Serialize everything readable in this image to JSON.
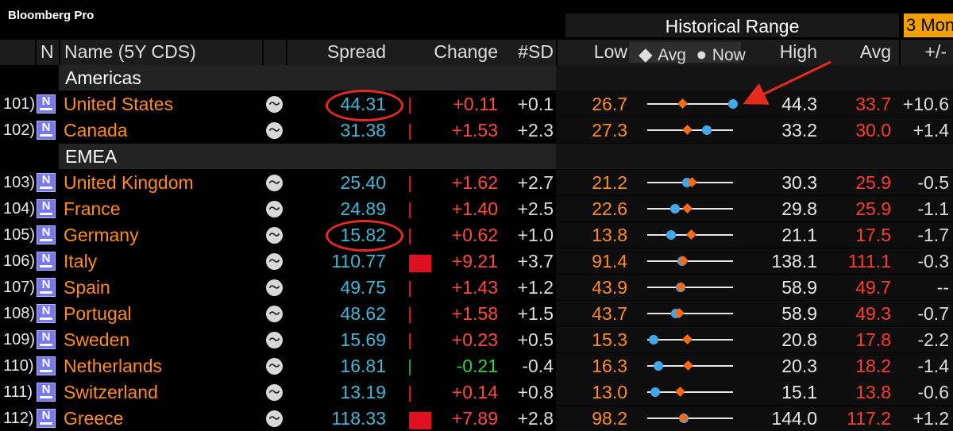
{
  "app": {
    "brand": "Bloomberg Pro"
  },
  "range": {
    "title": "Historical Range",
    "period_button": "3 Mon"
  },
  "columns": {
    "n": "N",
    "name": "Name (5Y CDS)",
    "spread": "Spread",
    "change": "Change",
    "sd": "#SD",
    "low": "Low",
    "legend_avg": "Avg",
    "legend_now": "Now",
    "high": "High",
    "avg": "Avg",
    "pm": "+/-"
  },
  "colors": {
    "accent_orange": "#ff8c1a",
    "spread_cyan": "#3fb7d6",
    "now_blue": "#41a8ec",
    "avg_orange": "#ff6a10",
    "change_red": "#e01020",
    "change_green": "#1fa02a"
  },
  "groups": [
    {
      "label": "Americas",
      "rows": [
        {
          "num": "101)",
          "name": "United States",
          "spread": "44.31",
          "change": "+0.11",
          "change_value": 0.11,
          "sd": "+0.1",
          "low": "26.7",
          "high": "44.3",
          "avg": "33.7",
          "pm": "+10.6",
          "avg_pos": 0.41,
          "now_pos": 1.0,
          "badge": "",
          "highlighted": true
        },
        {
          "num": "102)",
          "name": "Canada",
          "spread": "31.38",
          "change": "+1.53",
          "change_value": 1.53,
          "sd": "+2.3",
          "low": "27.3",
          "high": "33.2",
          "avg": "30.0",
          "pm": "+1.4",
          "avg_pos": 0.46,
          "now_pos": 0.69
        }
      ]
    },
    {
      "label": "EMEA",
      "rows": [
        {
          "num": "103)",
          "name": "United Kingdom",
          "spread": "25.40",
          "change": "+1.62",
          "change_value": 1.62,
          "sd": "+2.7",
          "low": "21.2",
          "high": "30.3",
          "avg": "25.9",
          "pm": "-0.5",
          "avg_pos": 0.52,
          "now_pos": 0.46
        },
        {
          "num": "104)",
          "name": "France",
          "spread": "24.89",
          "change": "+1.40",
          "change_value": 1.4,
          "sd": "+2.5",
          "low": "22.6",
          "high": "29.8",
          "avg": "25.9",
          "pm": "-1.1",
          "avg_pos": 0.46,
          "now_pos": 0.32
        },
        {
          "num": "105)",
          "name": "Germany",
          "spread": "15.82",
          "change": "+0.62",
          "change_value": 0.62,
          "sd": "+1.0",
          "low": "13.8",
          "high": "21.1",
          "avg": "17.5",
          "pm": "-1.7",
          "avg_pos": 0.51,
          "now_pos": 0.28,
          "highlighted": true
        },
        {
          "num": "106)",
          "name": "Italy",
          "spread": "110.77",
          "change": "+9.21",
          "change_value": 9.21,
          "sd": "+3.7",
          "low": "91.4",
          "high": "138.1",
          "avg": "111.1",
          "pm": "-0.3",
          "avg_pos": 0.42,
          "now_pos": 0.41
        },
        {
          "num": "107)",
          "name": "Spain",
          "spread": "49.75",
          "change": "+1.43",
          "change_value": 1.43,
          "sd": "+1.2",
          "low": "43.9",
          "high": "58.9",
          "avg": "49.7",
          "pm": "--",
          "avg_pos": 0.39,
          "now_pos": 0.39
        },
        {
          "num": "108)",
          "name": "Portugal",
          "spread": "48.62",
          "change": "+1.58",
          "change_value": 1.58,
          "sd": "+1.5",
          "low": "43.7",
          "high": "58.9",
          "avg": "49.3",
          "pm": "-0.7",
          "avg_pos": 0.37,
          "now_pos": 0.33
        },
        {
          "num": "109)",
          "name": "Sweden",
          "spread": "15.69",
          "change": "+0.23",
          "change_value": 0.23,
          "sd": "+0.5",
          "low": "15.3",
          "high": "20.8",
          "avg": "17.8",
          "pm": "-2.2",
          "avg_pos": 0.46,
          "now_pos": 0.07
        },
        {
          "num": "110)",
          "name": "Netherlands",
          "spread": "16.81",
          "change": "-0.21",
          "change_value": -0.21,
          "sd": "-0.4",
          "low": "16.3",
          "high": "20.3",
          "avg": "18.2",
          "pm": "-1.4",
          "avg_pos": 0.47,
          "now_pos": 0.13
        },
        {
          "num": "111)",
          "name": "Switzerland",
          "spread": "13.19",
          "change": "+0.14",
          "change_value": 0.14,
          "sd": "+0.8",
          "low": "13.0",
          "high": "15.1",
          "avg": "13.8",
          "pm": "-0.6",
          "avg_pos": 0.38,
          "now_pos": 0.09
        },
        {
          "num": "112)",
          "name": "Greece",
          "spread": "118.33",
          "change": "+7.89",
          "change_value": 7.89,
          "sd": "+2.8",
          "low": "98.2",
          "high": "144.0",
          "avg": "117.2",
          "pm": "+1.2",
          "avg_pos": 0.42,
          "now_pos": 0.43
        }
      ]
    }
  ]
}
